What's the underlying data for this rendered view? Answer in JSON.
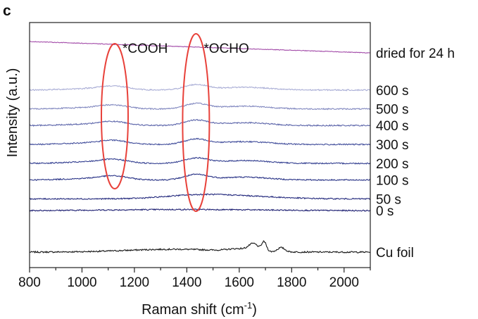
{
  "panel_label": "c",
  "chart_data": {
    "type": "line",
    "title": "",
    "xlabel": "Raman shift (cm",
    "xlabel_sup": "-1",
    "xlabel_close": ")",
    "ylabel": "Intensity (a.u.)",
    "xlim": [
      800,
      2100
    ],
    "x_ticks": [
      800,
      1000,
      1200,
      1400,
      1600,
      1800,
      2000
    ],
    "grid": false,
    "legend": "none (series labeled at right end of each trace)",
    "series": [
      {
        "name": "Cu foil",
        "offset": 0.0,
        "color": "#151515",
        "feature": "cu"
      },
      {
        "name": "0 s",
        "offset": 1.75,
        "color": "#1d1f72",
        "feature": "flat"
      },
      {
        "name": "50 s",
        "offset": 2.25,
        "color": "#22287c",
        "feature": "weak"
      },
      {
        "name": "100 s",
        "offset": 3.05,
        "color": "#283286",
        "feature": "bands"
      },
      {
        "name": "200 s",
        "offset": 3.75,
        "color": "#323e90",
        "feature": "bands"
      },
      {
        "name": "300 s",
        "offset": 4.55,
        "color": "#414d9b",
        "feature": "bands"
      },
      {
        "name": "400 s",
        "offset": 5.35,
        "color": "#5c65aa",
        "feature": "bands"
      },
      {
        "name": "500 s",
        "offset": 6.05,
        "color": "#8087bf",
        "feature": "bands"
      },
      {
        "name": "600 s",
        "offset": 6.85,
        "color": "#aaaed6",
        "feature": "bands"
      },
      {
        "name": "dried for 24 h",
        "offset": 8.35,
        "color": "#a34ca9",
        "feature": "slope"
      }
    ],
    "annotations": [
      {
        "label": "*COOH",
        "x_center": 1125
      },
      {
        "label": "*OCHO",
        "x_center": 1435
      }
    ],
    "annotation_color": "#e8413a"
  }
}
